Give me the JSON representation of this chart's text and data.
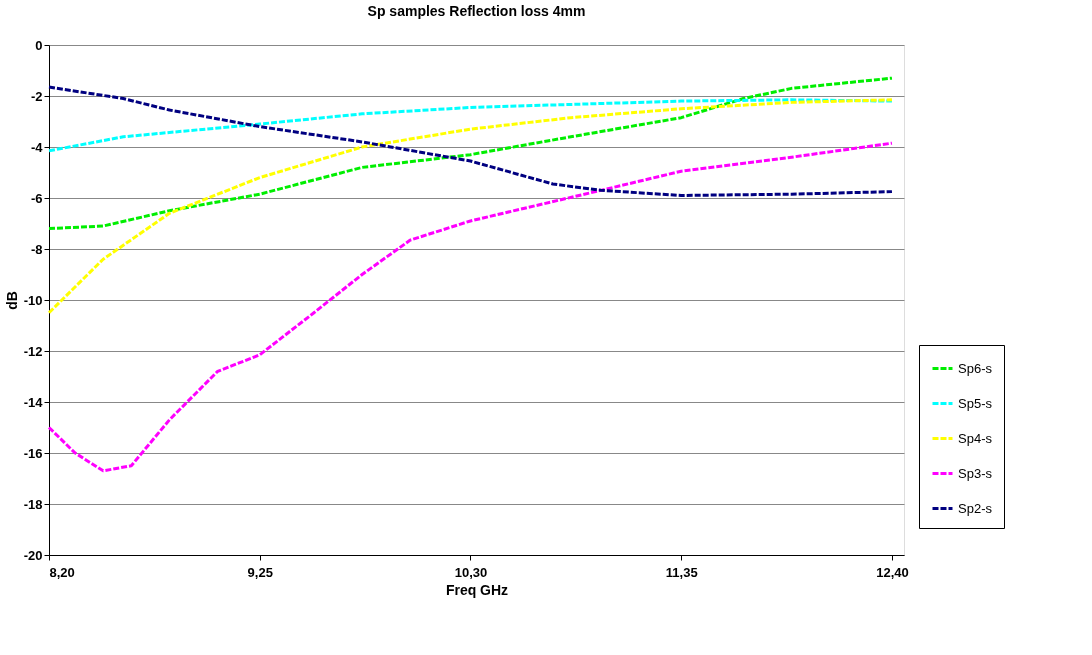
{
  "chart_data": {
    "type": "line",
    "title": "Sp samples Reflection loss 4mm",
    "xlabel": "Freq GHz",
    "ylabel": "dB",
    "xlim": [
      8.2,
      12.46
    ],
    "xticks": [
      {
        "value": 8.2,
        "label": "8,20"
      },
      {
        "value": 9.25,
        "label": "9,25"
      },
      {
        "value": 10.3,
        "label": "10,30"
      },
      {
        "value": 11.35,
        "label": "11,35"
      },
      {
        "value": 12.4,
        "label": "12,40"
      }
    ],
    "ylim": [
      -20,
      0
    ],
    "yticks": [
      -20,
      -18,
      -16,
      -14,
      -12,
      -10,
      -8,
      -6,
      -4,
      -2,
      0
    ],
    "grid": "y",
    "legend": "right",
    "line_style": "dashed",
    "marker": "none",
    "series": [
      {
        "name": "Sp6-s",
        "color": "#00ee00",
        "x": [
          8.2,
          8.47,
          8.8,
          9.25,
          9.76,
          10.3,
          10.8,
          11.35,
          11.66,
          11.9,
          12.4
        ],
        "values": [
          -7.2,
          -7.1,
          -6.5,
          -5.85,
          -4.8,
          -4.3,
          -3.6,
          -2.85,
          -2.1,
          -1.7,
          -1.3
        ]
      },
      {
        "name": "Sp5-s",
        "color": "#00ffff",
        "x": [
          8.2,
          8.57,
          9.25,
          9.76,
          10.3,
          11.35,
          11.9,
          12.4
        ],
        "values": [
          -4.15,
          -3.6,
          -3.1,
          -2.7,
          -2.45,
          -2.2,
          -2.15,
          -2.2
        ]
      },
      {
        "name": "Sp4-s",
        "color": "#ffff00",
        "x": [
          8.2,
          8.47,
          8.8,
          9.25,
          9.76,
          10.3,
          10.8,
          11.35,
          11.9,
          12.4
        ],
        "values": [
          -10.5,
          -8.4,
          -6.6,
          -5.2,
          -4.0,
          -3.3,
          -2.85,
          -2.5,
          -2.25,
          -2.15
        ]
      },
      {
        "name": "Sp3-s",
        "color": "#ff00ff",
        "x": [
          8.2,
          8.33,
          8.47,
          8.61,
          8.8,
          9.04,
          9.25,
          9.52,
          9.76,
          10.0,
          10.3,
          10.57,
          10.95,
          11.35,
          11.9,
          12.4
        ],
        "values": [
          -15.0,
          -16.0,
          -16.7,
          -16.5,
          -14.7,
          -12.8,
          -12.15,
          -10.5,
          -9.0,
          -7.65,
          -6.9,
          -6.4,
          -5.7,
          -4.95,
          -4.4,
          -3.85
        ]
      },
      {
        "name": "Sp2-s",
        "color": "#000080",
        "x": [
          8.2,
          8.57,
          8.8,
          9.25,
          9.76,
          10.3,
          10.71,
          10.95,
          11.35,
          11.9,
          12.4
        ],
        "values": [
          -1.65,
          -2.1,
          -2.55,
          -3.2,
          -3.8,
          -4.55,
          -5.45,
          -5.7,
          -5.9,
          -5.85,
          -5.75
        ]
      }
    ]
  }
}
